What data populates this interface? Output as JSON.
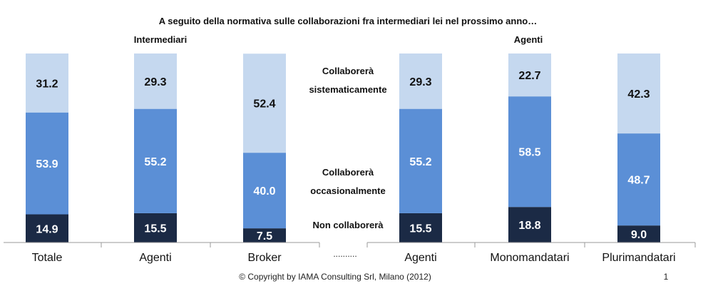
{
  "title": "A seguito della normativa sulle collaborazioni fra intermediari lei nel prossimo anno…",
  "groups": [
    "Intermediari",
    "Agenti"
  ],
  "legend": {
    "sistematicamente": [
      "Collaborerà",
      "sistematicamente"
    ],
    "occasionalmente": [
      "Collaborerà",
      "occasionalmente"
    ],
    "non": [
      "Non collaborerà"
    ]
  },
  "separator": "..........",
  "footer": {
    "copyright": "© Copyright by IAMA Consulting Srl, Milano (2012)",
    "page": "1"
  },
  "colors": {
    "non": "#1b2a45",
    "occasionalmente": "#5b8fd6",
    "sistematicamente": "#c5d8ef"
  },
  "chart_data": {
    "type": "bar",
    "stacked": true,
    "categories": [
      "Totale",
      "Agenti",
      "Broker",
      "Agenti",
      "Monomandatari",
      "Plurimandatari"
    ],
    "series": [
      {
        "name": "Non collaborerà",
        "values": [
          14.9,
          15.5,
          7.5,
          15.5,
          18.8,
          9.0
        ]
      },
      {
        "name": "Collaborerà occasionalmente",
        "values": [
          53.9,
          55.2,
          40.0,
          55.2,
          58.5,
          48.7
        ]
      },
      {
        "name": "Collaborerà sistematicamente",
        "values": [
          31.2,
          29.3,
          52.4,
          29.3,
          22.7,
          42.3
        ]
      }
    ],
    "ylim": [
      0,
      100
    ]
  }
}
